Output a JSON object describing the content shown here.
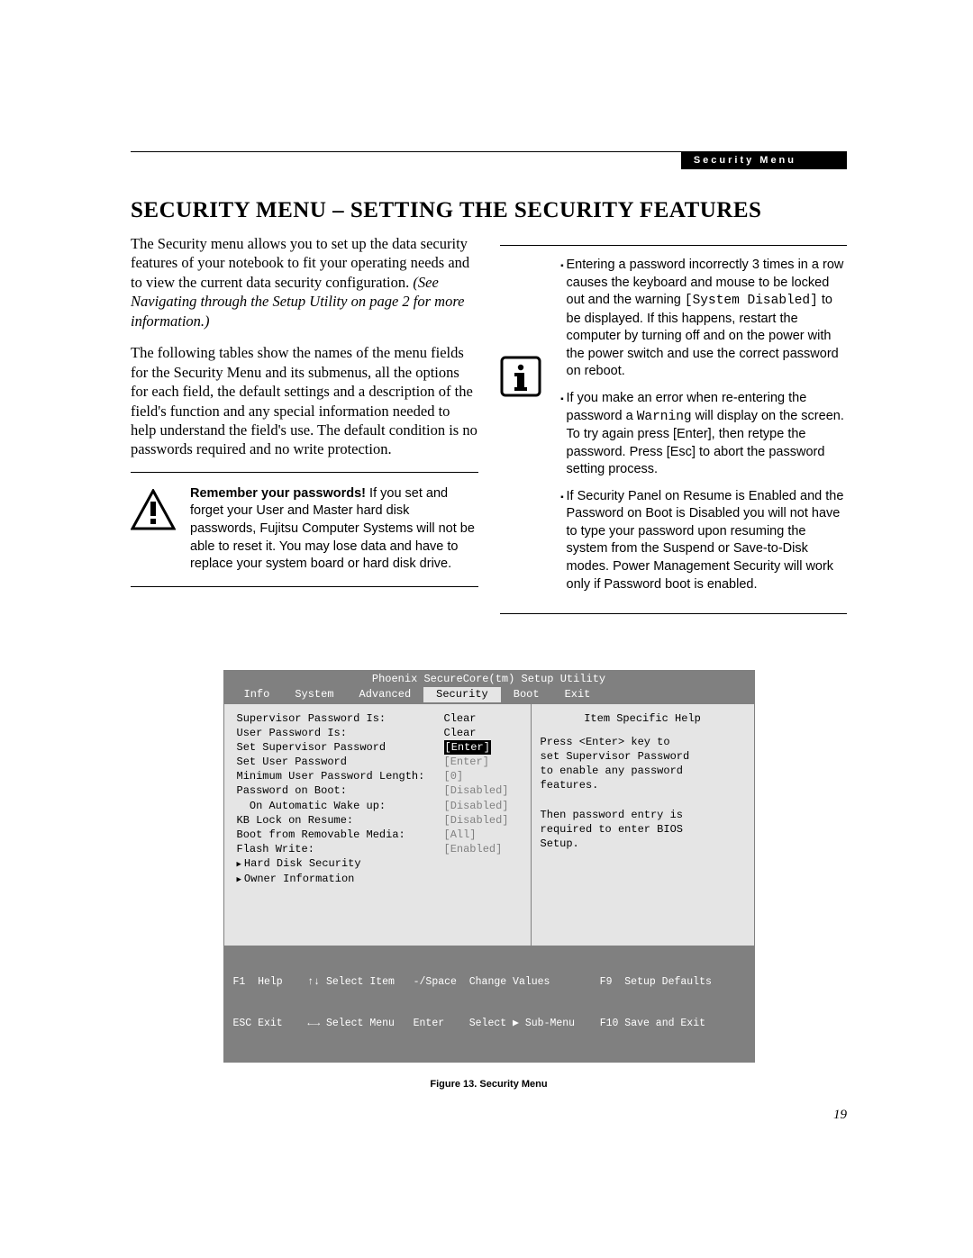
{
  "header": {
    "badge": "Security Menu"
  },
  "title": "SECURITY MENU – SETTING THE SECURITY FEATURES",
  "left": {
    "p1a": "The Security menu allows you to set up the data security features of your notebook to fit your operating needs and to view the current data security configuration. ",
    "p1b": "(See Navigating through the Setup Utility on page 2 for more information.)",
    "p2": "The following tables show the names of the menu fields for the Security Menu and its submenus, all the options for each field, the default settings and a description of the field's function and any special information needed to help understand the field's use. The default condition is no passwords required and no write protection.",
    "warn_bold": "Remember your passwords!",
    "warn_rest": " If you set and forget your User and Master hard disk passwords, Fujitsu Computer Systems will not be able to reset it. You may lose data and have to replace your system board or hard disk drive."
  },
  "right": {
    "b1a": "Entering a password incorrectly 3 times in a row causes the keyboard and mouse to be locked out and the warning ",
    "b1code": "[System Disabled]",
    "b1b": " to be displayed. If this happens, restart the computer by turning off and on the power with the power switch and use the correct password on reboot.",
    "b2a": "If you make an error when re-entering the password a ",
    "b2code": "Warning",
    "b2b": " will display on the screen. To try again press [Enter], then retype the password. Press [Esc] to abort the password setting process.",
    "b3": "If Security Panel on Resume is Enabled and the Password on Boot is Disabled you will not have to type your password upon resuming the system from the Suspend or Save-to-Disk modes. Power Management Security will work only if Password boot is enabled."
  },
  "bios": {
    "title": "Phoenix SecureCore(tm) Setup Utility",
    "tabs": [
      "Info",
      "System",
      "Advanced",
      "Security",
      "Boot",
      "Exit"
    ],
    "active_tab": 3,
    "rows": [
      {
        "label": "Supervisor Password Is:",
        "value": "Clear",
        "cls": "strong"
      },
      {
        "label": "User Password Is:",
        "value": "Clear",
        "cls": "strong"
      },
      {
        "label": "",
        "value": ""
      },
      {
        "label": "Set Supervisor Password",
        "value": "[Enter]",
        "cls": "inv"
      },
      {
        "label": "Set User Password",
        "value": "[Enter]",
        "cls": ""
      },
      {
        "label": "Minimum User Password Length:",
        "value": "[0]",
        "cls": ""
      },
      {
        "label": "Password on Boot:",
        "value": "[Disabled]",
        "cls": ""
      },
      {
        "label": "  On Automatic Wake up:",
        "value": "[Disabled]",
        "cls": ""
      },
      {
        "label": "KB Lock on Resume:",
        "value": "[Disabled]",
        "cls": ""
      },
      {
        "label": "Boot from Removable Media:",
        "value": "[All]",
        "cls": ""
      },
      {
        "label": "Flash Write:",
        "value": "[Enabled]",
        "cls": ""
      }
    ],
    "sub1": "Hard Disk Security",
    "sub2": "Owner Information",
    "help_title": "Item Specific Help",
    "help_body": "Press <Enter> key to\nset Supervisor Password\nto enable any password\nfeatures.\n\nThen password entry is\nrequired to enter BIOS\nSetup.",
    "footer1": "F1  Help    ↑↓ Select Item   -/Space  Change Values        F9  Setup Defaults",
    "footer2": "ESC Exit    ←→ Select Menu   Enter    Select ▶ Sub-Menu    F10 Save and Exit"
  },
  "caption": "Figure 13.  Security Menu",
  "pagenum": "19",
  "colors": {
    "bios_gray": "#808080",
    "bios_panel": "#e5e5e5"
  }
}
